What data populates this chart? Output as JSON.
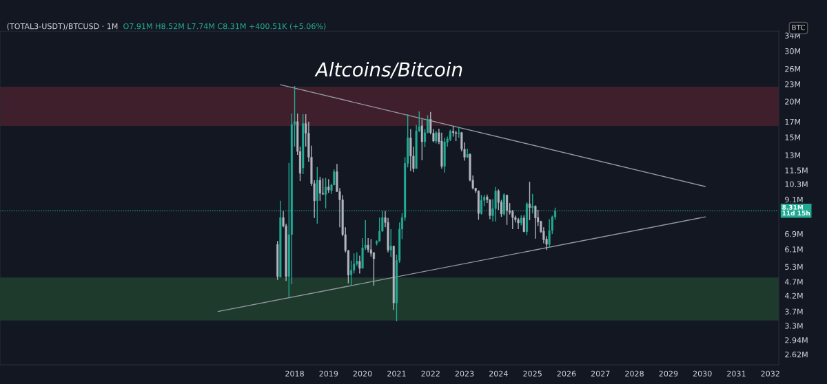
{
  "chart_data": {
    "type": "candlestick",
    "title": "Altcoins/Bitcoin",
    "subtitle": "(TOTAL3-USDT)/BTCUSD · 1M",
    "annotations": [
      "O7.91M H8.52M L7.74M C8.31M +400.51K (+5.06%)"
    ],
    "ylabel": "BTC",
    "x": [
      "2017-07",
      "2017-08",
      "2017-09",
      "2017-10",
      "2017-11",
      "2017-12",
      "2018-01",
      "2018-02",
      "2018-03",
      "2018-04",
      "2018-05",
      "2018-06",
      "2018-07",
      "2018-08",
      "2018-09",
      "2018-10",
      "2018-11",
      "2018-12",
      "2019-01",
      "2019-02",
      "2019-03",
      "2019-04",
      "2019-05",
      "2019-06",
      "2019-07",
      "2019-08",
      "2019-09",
      "2019-10",
      "2019-11",
      "2019-12",
      "2020-01",
      "2020-02",
      "2020-03",
      "2020-04",
      "2020-05",
      "2020-06",
      "2020-07",
      "2020-08",
      "2020-09",
      "2020-10",
      "2020-11",
      "2020-12",
      "2021-01",
      "2021-02",
      "2021-03",
      "2021-04",
      "2021-05",
      "2021-06",
      "2021-07",
      "2021-08",
      "2021-09",
      "2021-10",
      "2021-11",
      "2021-12",
      "2022-01",
      "2022-02",
      "2022-03",
      "2022-04",
      "2022-05",
      "2022-06",
      "2022-07",
      "2022-08",
      "2022-09",
      "2022-10",
      "2022-11",
      "2022-12",
      "2023-01",
      "2023-02",
      "2023-03",
      "2023-04",
      "2023-05",
      "2023-06",
      "2023-07",
      "2023-08",
      "2023-09",
      "2023-10",
      "2023-11",
      "2023-12",
      "2024-01",
      "2024-02",
      "2024-03",
      "2024-04",
      "2024-05",
      "2024-06",
      "2024-07",
      "2024-08",
      "2024-09",
      "2024-10",
      "2024-11",
      "2024-12",
      "2025-01",
      "2025-02",
      "2025-03",
      "2025-04",
      "2025-05",
      "2025-06",
      "2025-07",
      "2025-08",
      "2025-09"
    ],
    "ohlc": [
      [
        6.34,
        6.52,
        4.77,
        4.9
      ],
      [
        4.87,
        9.0,
        4.87,
        7.87
      ],
      [
        7.87,
        8.29,
        7.28,
        7.36
      ],
      [
        7.36,
        7.49,
        4.73,
        4.9
      ],
      [
        4.9,
        12.2,
        4.15,
        6.86
      ],
      [
        6.86,
        18.14,
        4.6,
        16.63
      ],
      [
        16.63,
        22.64,
        13.91,
        17.0
      ],
      [
        17.0,
        18.14,
        13.02,
        13.38
      ],
      [
        13.38,
        13.91,
        10.55,
        11.23
      ],
      [
        11.72,
        18.04,
        11.15,
        16.76
      ],
      [
        16.76,
        18.04,
        13.91,
        15.51
      ],
      [
        15.51,
        17.0,
        12.32,
        12.78
      ],
      [
        12.78,
        14.01,
        10.15,
        10.34
      ],
      [
        10.34,
        10.62,
        7.84,
        9.0
      ],
      [
        9.0,
        11.8,
        7.49,
        10.62
      ],
      [
        10.62,
        10.92,
        9.0,
        9.56
      ],
      [
        9.56,
        10.78,
        9.43,
        9.51
      ],
      [
        9.46,
        10.82,
        8.47,
        10.06
      ],
      [
        10.06,
        10.72,
        9.6,
        9.82
      ],
      [
        9.78,
        10.34,
        9.51,
        10.22
      ],
      [
        10.22,
        11.59,
        10.22,
        11.38
      ],
      [
        11.38,
        12.1,
        9.69,
        9.69
      ],
      [
        9.69,
        9.97,
        7.28,
        9.08
      ],
      [
        9.08,
        9.43,
        6.77,
        6.86
      ],
      [
        6.86,
        7.28,
        5.95,
        6.04
      ],
      [
        6.04,
        6.06,
        4.64,
        4.96
      ],
      [
        4.96,
        5.57,
        4.53,
        5.15
      ],
      [
        5.15,
        5.9,
        5.02,
        5.42
      ],
      [
        5.42,
        5.95,
        5.33,
        5.54
      ],
      [
        5.54,
        5.79,
        5.02,
        5.23
      ],
      [
        5.23,
        6.67,
        5.23,
        6.17
      ],
      [
        6.17,
        7.7,
        6.06,
        6.31
      ],
      [
        6.31,
        6.67,
        5.95,
        6.08
      ],
      [
        6.08,
        6.62,
        5.75,
        5.9
      ],
      [
        5.94,
        5.95,
        4.55,
        5.65
      ],
      [
        6.4,
        6.55,
        6.29,
        6.5
      ],
      [
        6.5,
        7.87,
        6.5,
        7.05
      ],
      [
        7.05,
        8.29,
        7.02,
        7.87
      ],
      [
        7.87,
        8.29,
        7.28,
        7.56
      ],
      [
        7.56,
        7.84,
        5.95,
        6.06
      ],
      [
        6.06,
        7.17,
        5.73,
        6.26
      ],
      [
        6.26,
        6.26,
        3.75,
        3.96
      ],
      [
        3.96,
        5.84,
        3.42,
        5.57
      ],
      [
        5.57,
        7.56,
        5.47,
        7.17
      ],
      [
        7.17,
        8.16,
        6.62,
        7.87
      ],
      [
        7.87,
        12.78,
        7.67,
        12.16
      ],
      [
        12.16,
        18.04,
        11.77,
        14.94
      ],
      [
        14.94,
        16.03,
        11.44,
        12.9
      ],
      [
        12.9,
        13.89,
        11.33,
        11.66
      ],
      [
        11.66,
        16.54,
        11.66,
        15.79
      ],
      [
        15.79,
        18.47,
        15.65,
        16.33
      ],
      [
        16.45,
        17.33,
        12.48,
        14.46
      ],
      [
        14.46,
        16.03,
        13.84,
        15.56
      ],
      [
        15.56,
        17.91,
        15.51,
        17.33
      ],
      [
        17.33,
        18.37,
        15.36,
        15.56
      ],
      [
        15.51,
        16.03,
        14.4,
        14.54
      ],
      [
        14.54,
        15.79,
        14.27,
        15.56
      ],
      [
        15.56,
        16.08,
        14.19,
        14.46
      ],
      [
        14.54,
        15.56,
        11.66,
        11.87
      ],
      [
        11.87,
        14.94,
        11.29,
        14.46
      ],
      [
        14.4,
        15.08,
        13.89,
        14.8
      ],
      [
        14.72,
        15.94,
        14.54,
        15.73
      ],
      [
        15.73,
        16.39,
        15.08,
        15.56
      ],
      [
        15.56,
        15.79,
        14.54,
        15.45
      ],
      [
        15.45,
        16.33,
        14.94,
        15.56
      ],
      [
        15.56,
        15.65,
        13.38,
        13.62
      ],
      [
        13.62,
        14.4,
        12.43,
        12.78
      ],
      [
        12.78,
        13.68,
        12.71,
        13.07
      ],
      [
        13.07,
        13.19,
        10.53,
        10.62
      ],
      [
        10.62,
        11.03,
        9.87,
        9.97
      ],
      [
        9.97,
        9.97,
        9.6,
        9.75
      ],
      [
        9.75,
        9.78,
        7.73,
        8.13
      ],
      [
        8.13,
        9.43,
        8.06,
        9.03
      ],
      [
        9.03,
        9.43,
        8.63,
        9.29
      ],
      [
        9.29,
        9.46,
        8.84,
        9.08
      ],
      [
        9.08,
        9.12,
        7.77,
        7.99
      ],
      [
        7.99,
        9.12,
        7.63,
        8.45
      ],
      [
        8.45,
        10.06,
        7.63,
        9.75
      ],
      [
        9.75,
        9.87,
        8.37,
        8.88
      ],
      [
        8.91,
        9.08,
        7.91,
        8.1
      ],
      [
        8.1,
        9.56,
        7.99,
        9.46
      ],
      [
        9.43,
        9.43,
        7.42,
        8.32
      ],
      [
        8.32,
        8.84,
        8.06,
        8.21
      ],
      [
        8.26,
        8.37,
        7.17,
        7.87
      ],
      [
        7.87,
        7.99,
        7.56,
        7.74
      ],
      [
        7.74,
        7.84,
        7.17,
        7.53
      ],
      [
        7.53,
        8.01,
        7.39,
        7.84
      ],
      [
        7.84,
        8.01,
        7.0,
        7.02
      ],
      [
        7.02,
        8.91,
        6.83,
        8.79
      ],
      [
        8.79,
        10.49,
        7.7,
        8.52
      ],
      [
        8.52,
        9.51,
        8.13,
        8.63
      ],
      [
        8.63,
        8.68,
        6.64,
        7.84
      ],
      [
        7.87,
        8.37,
        7.35,
        7.59
      ],
      [
        7.63,
        7.67,
        6.95,
        7.02
      ],
      [
        7.05,
        7.28,
        6.4,
        6.58
      ],
      [
        6.62,
        6.77,
        6.06,
        6.34
      ],
      [
        6.34,
        7.77,
        6.17,
        7.09
      ],
      [
        7.09,
        7.99,
        6.89,
        7.91
      ],
      [
        7.91,
        8.52,
        7.74,
        8.31
      ]
    ],
    "colors": [
      "#b2b5be",
      "#22ab94",
      "#b2b5be",
      "#b2b5be",
      "#22ab94",
      "#22ab94",
      "#22ab94",
      "#b2b5be",
      "#b2b5be",
      "#22ab94",
      "#b2b5be",
      "#b2b5be",
      "#b2b5be",
      "#b2b5be",
      "#22ab94",
      "#b2b5be",
      "#b2b5be",
      "#22ab94",
      "#b2b5be",
      "#22ab94",
      "#22ab94",
      "#b2b5be",
      "#b2b5be",
      "#b2b5be",
      "#b2b5be",
      "#b2b5be",
      "#22ab94",
      "#22ab94",
      "#22ab94",
      "#b2b5be",
      "#22ab94",
      "#22ab94",
      "#b2b5be",
      "#b2b5be",
      "#b2b5be",
      "#22ab94",
      "#22ab94",
      "#22ab94",
      "#b2b5be",
      "#b2b5be",
      "#22ab94",
      "#b2b5be",
      "#22ab94",
      "#22ab94",
      "#22ab94",
      "#22ab94",
      "#22ab94",
      "#b2b5be",
      "#b2b5be",
      "#22ab94",
      "#22ab94",
      "#b2b5be",
      "#22ab94",
      "#22ab94",
      "#b2b5be",
      "#b2b5be",
      "#22ab94",
      "#b2b5be",
      "#b2b5be",
      "#22ab94",
      "#22ab94",
      "#22ab94",
      "#b2b5be",
      "#b2b5be",
      "#22ab94",
      "#b2b5be",
      "#b2b5be",
      "#22ab94",
      "#b2b5be",
      "#b2b5be",
      "#b2b5be",
      "#b2b5be",
      "#22ab94",
      "#22ab94",
      "#b2b5be",
      "#b2b5be",
      "#22ab94",
      "#22ab94",
      "#b2b5be",
      "#b2b5be",
      "#22ab94",
      "#b2b5be",
      "#b2b5be",
      "#b2b5be",
      "#b2b5be",
      "#b2b5be",
      "#22ab94",
      "#b2b5be",
      "#22ab94",
      "#b2b5be",
      "#22ab94",
      "#b2b5be",
      "#b2b5be",
      "#b2b5be",
      "#b2b5be",
      "#b2b5be",
      "#22ab94",
      "#22ab94",
      "#22ab94"
    ],
    "series": [
      {
        "type": "line",
        "x": [
          "2017-08",
          "2030-02"
        ],
        "values": [
          22.88,
          10.1
        ],
        "color": "#9598a1"
      },
      {
        "type": "line",
        "x": [
          "2015-10",
          "2030-02"
        ],
        "values": [
          3.7,
          7.91
        ],
        "color": "#9598a1"
      }
    ],
    "bands": [
      {
        "axis": "y",
        "from": 16.42,
        "to": 22.51,
        "color": "#3f1f2b"
      },
      {
        "axis": "y",
        "from": 3.44,
        "to": 4.86,
        "color": "#1e3a2c"
      }
    ],
    "ref_lines": [
      {
        "axis": "y",
        "value": 8.31,
        "label": "8.31M\n11d 15h",
        "color": "#22ab94",
        "line_style": "dotted"
      }
    ],
    "log": "y",
    "xlim": [
      "2009-05",
      "2032-04"
    ],
    "xticks": [
      {
        "value": "2018-01",
        "label": "2018"
      },
      {
        "value": "2019-01",
        "label": "2019"
      },
      {
        "value": "2020-01",
        "label": "2020"
      },
      {
        "value": "2021-01",
        "label": "2021"
      },
      {
        "value": "2022-01",
        "label": "2022"
      },
      {
        "value": "2023-01",
        "label": "2023"
      },
      {
        "value": "2024-01",
        "label": "2024"
      },
      {
        "value": "2025-01",
        "label": "2025"
      },
      {
        "value": "2026-01",
        "label": "2026"
      },
      {
        "value": "2027-01",
        "label": "2027"
      },
      {
        "value": "2028-01",
        "label": "2028"
      },
      {
        "value": "2029-01",
        "label": "2029"
      },
      {
        "value": "2030-01",
        "label": "2030"
      },
      {
        "value": "2031-01",
        "label": "2031"
      },
      {
        "value": "2032-01",
        "label": "2032"
      }
    ],
    "ylim": [
      2.41,
      35.2
    ],
    "yticks": [
      {
        "value": 2.62,
        "label": "2.62M"
      },
      {
        "value": 2.94,
        "label": "2.94M"
      },
      {
        "value": 3.3,
        "label": "3.3M"
      },
      {
        "value": 3.7,
        "label": "3.7M"
      },
      {
        "value": 4.2,
        "label": "4.2M"
      },
      {
        "value": 4.7,
        "label": "4.7M"
      },
      {
        "value": 5.3,
        "label": "5.3M"
      },
      {
        "value": 6.1,
        "label": "6.1M"
      },
      {
        "value": 6.9,
        "label": "6.9M"
      },
      {
        "value": 9.1,
        "label": "9.1M"
      },
      {
        "value": 10.3,
        "label": "10.3M"
      },
      {
        "value": 11.5,
        "label": "11.5M"
      },
      {
        "value": 13,
        "label": "13M"
      },
      {
        "value": 15,
        "label": "15M"
      },
      {
        "value": 17,
        "label": "17M"
      },
      {
        "value": 20,
        "label": "20M"
      },
      {
        "value": 23,
        "label": "23M"
      },
      {
        "value": 26,
        "label": "26M"
      },
      {
        "value": 30,
        "label": "30M"
      },
      {
        "value": 34,
        "label": "34M"
      }
    ],
    "grid": false,
    "legend": false
  }
}
